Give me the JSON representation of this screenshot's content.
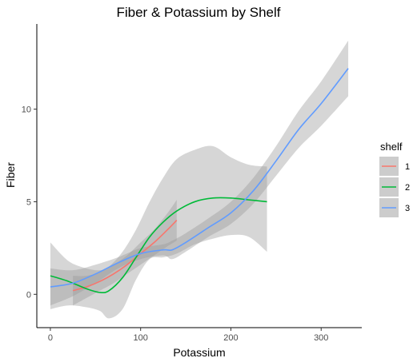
{
  "chart_data": {
    "type": "line",
    "title": "Fiber & Potassium by Shelf",
    "xlabel": "Potassium",
    "ylabel": "Fiber",
    "xlim": [
      -15,
      345
    ],
    "ylim": [
      -1.8,
      14.6
    ],
    "x_ticks": [
      0,
      100,
      200,
      300
    ],
    "x_tick_labels": [
      "0",
      "100",
      "200",
      "300"
    ],
    "y_ticks": [
      0,
      5,
      10
    ],
    "y_tick_labels": [
      "0",
      "5",
      "10"
    ],
    "grid": false,
    "legend": {
      "title": "shelf",
      "placement": "right"
    },
    "series": [
      {
        "name": "1",
        "color": "#F8766D",
        "x": [
          25,
          40,
          55,
          70,
          85,
          100,
          115,
          130,
          140
        ],
        "y": [
          0.2,
          0.4,
          0.7,
          1.1,
          1.6,
          2.2,
          2.8,
          3.5,
          4.0
        ],
        "band_lower": [
          -0.6,
          -0.2,
          0.2,
          0.6,
          1.1,
          1.6,
          2.1,
          2.6,
          2.9
        ],
        "band_upper": [
          1.0,
          1.0,
          1.2,
          1.6,
          2.1,
          2.8,
          3.5,
          4.4,
          5.1
        ]
      },
      {
        "name": "2",
        "color": "#00BA38",
        "x": [
          0,
          20,
          40,
          55,
          65,
          80,
          95,
          110,
          125,
          140,
          160,
          180,
          200,
          220,
          240
        ],
        "y": [
          1.0,
          0.7,
          0.3,
          0.1,
          0.2,
          0.9,
          2.0,
          3.1,
          3.9,
          4.5,
          5.0,
          5.2,
          5.2,
          5.1,
          5.0
        ],
        "band_lower": [
          -0.8,
          -0.6,
          -0.7,
          -0.9,
          -1.3,
          -0.8,
          0.8,
          1.9,
          2.0,
          2.2,
          2.7,
          3.0,
          3.2,
          3.1,
          2.3
        ],
        "band_upper": [
          2.8,
          1.8,
          1.4,
          1.3,
          1.5,
          2.3,
          3.5,
          5.0,
          6.3,
          7.3,
          7.8,
          8.0,
          7.4,
          7.0,
          6.9
        ]
      },
      {
        "name": "3",
        "color": "#619CFF",
        "x": [
          0,
          25,
          50,
          75,
          100,
          125,
          135,
          150,
          175,
          200,
          225,
          250,
          275,
          300,
          330
        ],
        "y": [
          0.4,
          0.6,
          1.1,
          1.7,
          2.2,
          2.4,
          2.4,
          2.8,
          3.6,
          4.4,
          5.6,
          7.2,
          8.9,
          10.3,
          12.2
        ],
        "band_lower": [
          -0.6,
          -0.1,
          0.6,
          1.4,
          1.9,
          2.1,
          1.9,
          2.3,
          3.1,
          3.8,
          4.9,
          6.4,
          7.9,
          9.1,
          10.7
        ],
        "band_upper": [
          1.4,
          1.3,
          1.6,
          2.0,
          2.5,
          2.7,
          2.9,
          3.3,
          4.1,
          5.0,
          6.3,
          8.0,
          9.9,
          11.5,
          13.7
        ]
      }
    ]
  }
}
